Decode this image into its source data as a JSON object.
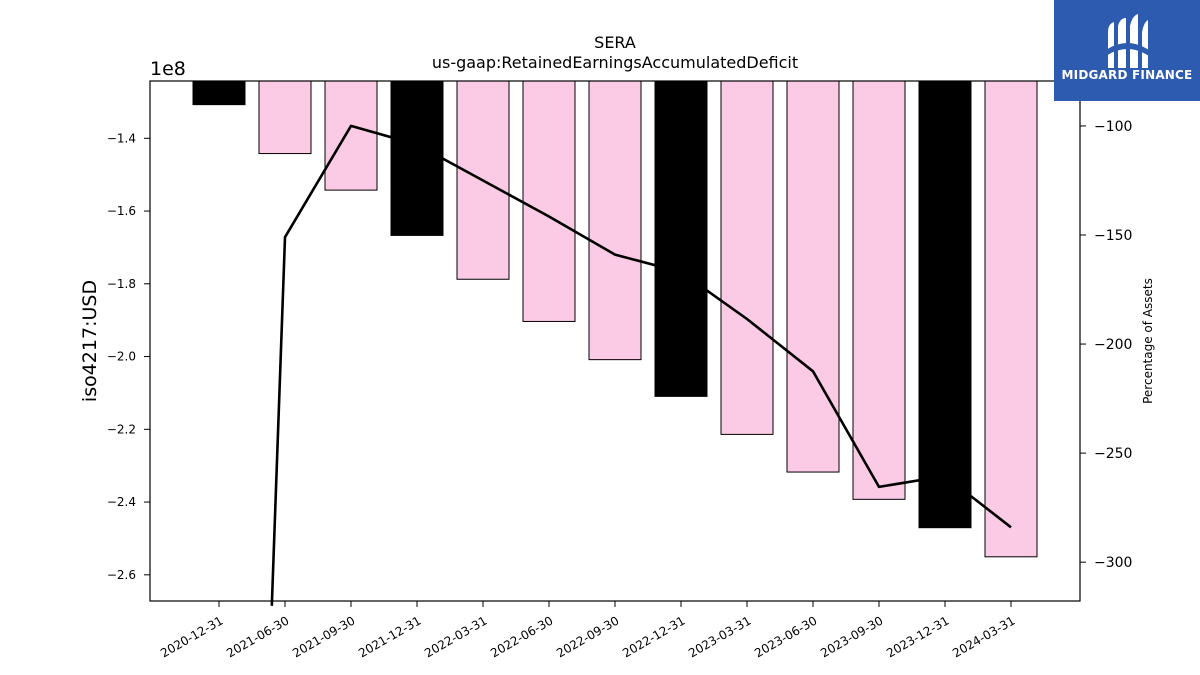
{
  "chart_data": {
    "type": "bar",
    "title": "SERA",
    "subtitle": "us-gaap:RetainedEarningsAccumulatedDeficit",
    "ylabel": "iso4217:USD",
    "y_multiplier": "1e8",
    "y2label": "Percentage of Assets",
    "categories": [
      "2020-12-31",
      "2021-06-30",
      "2021-09-30",
      "2021-12-31",
      "2022-03-31",
      "2022-06-30",
      "2022-09-30",
      "2022-12-31",
      "2023-03-31",
      "2023-06-30",
      "2023-09-30",
      "2023-12-31",
      "2024-03-31"
    ],
    "values": [
      -1.3075,
      -1.442,
      -1.5425,
      -1.667,
      -1.7875,
      -1.9035,
      -2.0085,
      -2.1095,
      -2.214,
      -2.3175,
      -2.3925,
      -2.4705,
      -2.5505
    ],
    "bar_colors": [
      "#000000",
      "#fbcbe5",
      "#fbcbe5",
      "#000000",
      "#fbcbe5",
      "#fbcbe5",
      "#fbcbe5",
      "#000000",
      "#fbcbe5",
      "#fbcbe5",
      "#fbcbe5",
      "#000000",
      "#fbcbe5"
    ],
    "ylim": [
      -2.672,
      -1.2425
    ],
    "yticks": [
      -1.4,
      -1.6,
      -1.8,
      -2.0,
      -2.2,
      -2.4,
      -2.6
    ],
    "ytick_labels": [
      "−1.4",
      "−1.6",
      "−1.8",
      "−2.0",
      "−2.2",
      "−2.4",
      "−2.6"
    ],
    "line_series": {
      "name": "Percentage of Assets",
      "x_index": [
        1,
        2,
        3,
        4,
        5,
        6,
        7,
        8,
        9,
        10,
        11,
        12
      ],
      "values": [
        -151,
        -100,
        -108.5,
        -125,
        -141.5,
        -159,
        -167,
        -188.5,
        -212.5,
        -265.5,
        -260.5,
        -284
      ],
      "offscreen_start": {
        "x_index": 0.8,
        "value": -320
      }
    },
    "y2lim": [
      -317.8,
      -79.4
    ],
    "y2ticks": [
      -100,
      -150,
      -200,
      -250,
      -300
    ],
    "y2tick_labels": [
      "−100",
      "−150",
      "−200",
      "−250",
      "−300"
    ],
    "grid": false
  },
  "logo": {
    "text": "MIDGARD FINANCE",
    "brand_color": "#2d5bb0"
  }
}
